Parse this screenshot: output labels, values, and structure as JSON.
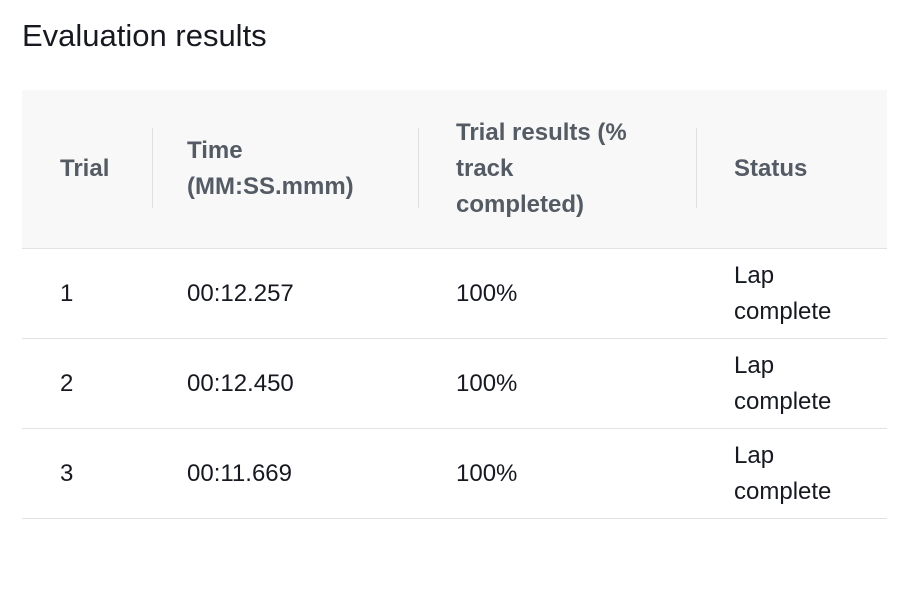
{
  "page": {
    "title": "Evaluation results"
  },
  "table": {
    "headers": [
      {
        "line1": "Trial",
        "line2": "",
        "line3": ""
      },
      {
        "line1": "Time",
        "line2": "(MM:SS.mmm)",
        "line3": ""
      },
      {
        "line1": "Trial results (%",
        "line2": "track",
        "line3": "completed)"
      },
      {
        "line1": "Status",
        "line2": "",
        "line3": ""
      }
    ],
    "rows": [
      {
        "trial": "1",
        "time": "00:12.257",
        "result": "100%",
        "status_line1": "Lap",
        "status_line2": "complete"
      },
      {
        "trial": "2",
        "time": "00:12.450",
        "result": "100%",
        "status_line1": "Lap",
        "status_line2": "complete"
      },
      {
        "trial": "3",
        "time": "00:11.669",
        "result": "100%",
        "status_line1": "Lap",
        "status_line2": "complete"
      }
    ]
  }
}
